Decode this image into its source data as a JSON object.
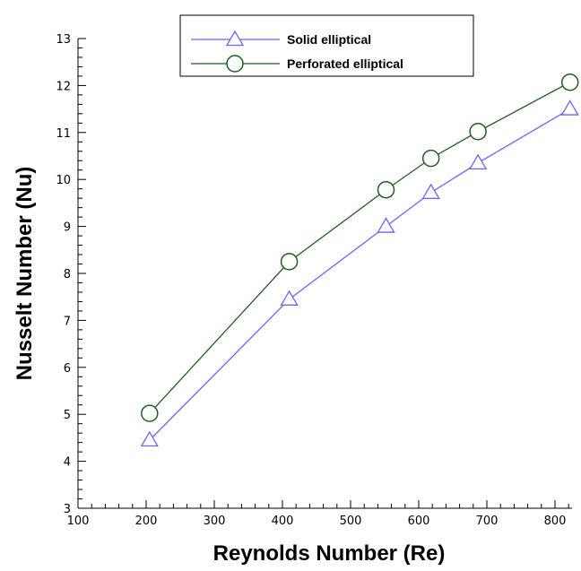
{
  "chart_data": {
    "type": "line",
    "xlabel": "Reynolds Number (Re)",
    "ylabel": "Nusselt Number (Nu)",
    "xlim": [
      100,
      825
    ],
    "ylim": [
      3,
      13
    ],
    "xticks": [
      100,
      200,
      300,
      400,
      500,
      600,
      700,
      800
    ],
    "yticks": [
      3,
      4,
      5,
      6,
      7,
      8,
      9,
      10,
      11,
      12,
      13
    ],
    "grid": false,
    "legend_position": "top-center",
    "series": [
      {
        "name": "Solid elliptical",
        "color": "#6666ff",
        "marker": "triangle",
        "x": [
          205,
          410,
          552,
          618,
          687,
          822
        ],
        "y": [
          4.45,
          7.45,
          9.0,
          9.72,
          10.35,
          11.5
        ]
      },
      {
        "name": "Perforated elliptical",
        "color": "#1f5f1f",
        "marker": "circle",
        "x": [
          205,
          410,
          552,
          618,
          687,
          822
        ],
        "y": [
          5.02,
          8.25,
          9.78,
          10.45,
          11.02,
          12.07
        ]
      }
    ]
  }
}
